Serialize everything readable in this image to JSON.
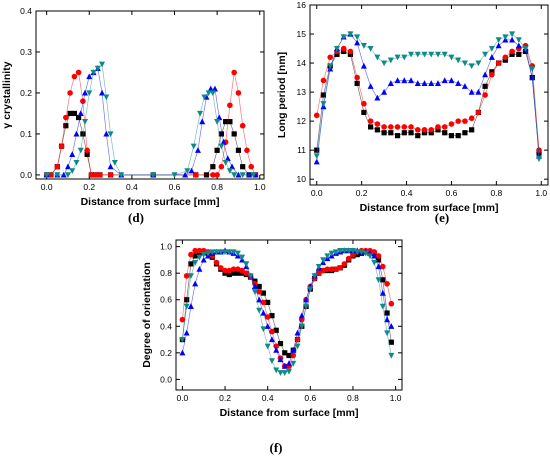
{
  "figure": {
    "captions": [
      "(d)",
      "(e)",
      "(f)"
    ]
  },
  "chart_data": [
    {
      "type": "scatter",
      "panel": "(d)",
      "xlabel": "Distance from surface [mm]",
      "ylabel": "γ crystallinity",
      "xlim": [
        -0.05,
        1.02
      ],
      "ylim": [
        -0.01,
        0.4
      ],
      "xticks": [
        "0.0",
        "0.2",
        "0.4",
        "0.6",
        "0.8",
        "1.0"
      ],
      "yticks": [
        "0.0",
        "0.1",
        "0.2",
        "0.3",
        "0.4"
      ],
      "grid": false,
      "legend": "none",
      "series": [
        {
          "color": "#000000",
          "marker": "square",
          "x": [
            0.0,
            0.02,
            0.05,
            0.07,
            0.09,
            0.11,
            0.13,
            0.15,
            0.17,
            0.19,
            0.21,
            0.23,
            0.25,
            0.3,
            0.5,
            0.7,
            0.75,
            0.78,
            0.8,
            0.82,
            0.84,
            0.86,
            0.88,
            0.9,
            0.92,
            0.95,
            0.98
          ],
          "y": [
            0.0,
            0.0,
            0.02,
            0.07,
            0.12,
            0.15,
            0.15,
            0.14,
            0.1,
            0.05,
            0.0,
            0.0,
            0.0,
            0.0,
            0.0,
            0.0,
            0.0,
            0.02,
            0.06,
            0.1,
            0.13,
            0.13,
            0.1,
            0.06,
            0.02,
            0.0,
            0.0
          ]
        },
        {
          "color": "#ff0000",
          "marker": "circle",
          "x": [
            0.0,
            0.02,
            0.05,
            0.07,
            0.09,
            0.11,
            0.13,
            0.15,
            0.17,
            0.19,
            0.21,
            0.23,
            0.25,
            0.3,
            0.5,
            0.7,
            0.78,
            0.8,
            0.82,
            0.84,
            0.86,
            0.88,
            0.9,
            0.92,
            0.94,
            0.96,
            0.98
          ],
          "y": [
            0.0,
            0.0,
            0.02,
            0.07,
            0.14,
            0.2,
            0.24,
            0.25,
            0.18,
            0.06,
            0.0,
            0.0,
            0.0,
            0.0,
            0.0,
            0.0,
            0.0,
            0.0,
            0.02,
            0.08,
            0.17,
            0.25,
            0.2,
            0.12,
            0.06,
            0.02,
            0.0
          ]
        },
        {
          "color": "#0000ff",
          "marker": "triangle-up",
          "x": [
            0.0,
            0.05,
            0.08,
            0.1,
            0.12,
            0.14,
            0.16,
            0.18,
            0.2,
            0.22,
            0.24,
            0.26,
            0.28,
            0.3,
            0.35,
            0.5,
            0.65,
            0.68,
            0.71,
            0.73,
            0.75,
            0.77,
            0.79,
            0.81,
            0.83,
            0.85,
            0.87,
            0.9,
            0.95,
            0.98
          ],
          "y": [
            0.0,
            0.0,
            0.0,
            0.02,
            0.05,
            0.1,
            0.15,
            0.2,
            0.24,
            0.25,
            0.26,
            0.2,
            0.1,
            0.02,
            0.0,
            0.0,
            0.0,
            0.01,
            0.06,
            0.13,
            0.19,
            0.21,
            0.21,
            0.14,
            0.08,
            0.04,
            0.02,
            0.0,
            0.0,
            0.0
          ]
        },
        {
          "color": "#0f8a86",
          "marker": "triangle-down",
          "x": [
            0.0,
            0.05,
            0.1,
            0.12,
            0.14,
            0.16,
            0.18,
            0.2,
            0.22,
            0.24,
            0.26,
            0.28,
            0.3,
            0.32,
            0.35,
            0.5,
            0.6,
            0.66,
            0.69,
            0.72,
            0.74,
            0.76,
            0.78,
            0.8,
            0.82,
            0.84,
            0.86,
            0.88,
            0.92,
            0.97
          ],
          "y": [
            0.0,
            0.0,
            0.0,
            0.01,
            0.03,
            0.06,
            0.13,
            0.2,
            0.25,
            0.26,
            0.27,
            0.19,
            0.1,
            0.03,
            0.0,
            0.0,
            0.0,
            0.01,
            0.07,
            0.15,
            0.19,
            0.2,
            0.2,
            0.13,
            0.07,
            0.03,
            0.01,
            0.0,
            0.0,
            0.0
          ]
        }
      ]
    },
    {
      "type": "scatter",
      "panel": "(e)",
      "xlabel": "Distance from surface [mm]",
      "ylabel": "Long period [nm]",
      "xlim": [
        -0.03,
        1.03
      ],
      "ylim": [
        9.8,
        16
      ],
      "xticks": [
        "0.0",
        "0.2",
        "0.4",
        "0.6",
        "0.8",
        "1.0"
      ],
      "yticks": [
        "10",
        "11",
        "12",
        "13",
        "14",
        "15",
        "16"
      ],
      "grid": false,
      "legend": "none",
      "series": [
        {
          "color": "#000000",
          "marker": "square",
          "x": [
            0.0,
            0.03,
            0.06,
            0.09,
            0.12,
            0.15,
            0.18,
            0.21,
            0.24,
            0.27,
            0.3,
            0.33,
            0.36,
            0.39,
            0.42,
            0.45,
            0.48,
            0.51,
            0.54,
            0.57,
            0.6,
            0.63,
            0.66,
            0.69,
            0.72,
            0.75,
            0.78,
            0.81,
            0.84,
            0.87,
            0.9,
            0.93,
            0.96,
            0.99
          ],
          "y": [
            11.0,
            12.9,
            13.9,
            14.3,
            14.4,
            14.3,
            13.3,
            12.3,
            11.8,
            11.7,
            11.6,
            11.6,
            11.5,
            11.6,
            11.6,
            11.5,
            11.6,
            11.6,
            11.7,
            11.6,
            11.5,
            11.5,
            11.6,
            11.7,
            12.3,
            13.2,
            13.7,
            14.0,
            14.1,
            14.3,
            14.3,
            14.4,
            13.5,
            10.9
          ]
        },
        {
          "color": "#ff0000",
          "marker": "circle",
          "x": [
            0.0,
            0.03,
            0.06,
            0.09,
            0.12,
            0.15,
            0.18,
            0.21,
            0.24,
            0.27,
            0.3,
            0.33,
            0.36,
            0.39,
            0.42,
            0.45,
            0.48,
            0.51,
            0.54,
            0.57,
            0.6,
            0.63,
            0.66,
            0.69,
            0.72,
            0.75,
            0.78,
            0.81,
            0.84,
            0.87,
            0.9,
            0.93,
            0.96,
            0.99
          ],
          "y": [
            12.2,
            13.4,
            14.2,
            14.4,
            14.5,
            14.4,
            13.5,
            12.6,
            12.0,
            11.9,
            11.8,
            11.8,
            11.8,
            11.8,
            11.8,
            11.7,
            11.7,
            11.7,
            11.8,
            11.8,
            11.9,
            12.0,
            12.0,
            12.1,
            12.3,
            12.9,
            13.6,
            14.0,
            14.2,
            14.4,
            14.5,
            14.6,
            13.9,
            11.0
          ]
        },
        {
          "color": "#0000ff",
          "marker": "triangle-up",
          "x": [
            0.0,
            0.03,
            0.06,
            0.09,
            0.12,
            0.15,
            0.18,
            0.21,
            0.24,
            0.27,
            0.3,
            0.33,
            0.36,
            0.39,
            0.42,
            0.45,
            0.48,
            0.51,
            0.54,
            0.57,
            0.6,
            0.63,
            0.66,
            0.69,
            0.72,
            0.75,
            0.78,
            0.81,
            0.84,
            0.87,
            0.9,
            0.93,
            0.96,
            0.99
          ],
          "y": [
            10.6,
            12.5,
            13.8,
            14.5,
            14.9,
            15.0,
            14.7,
            13.9,
            13.2,
            12.8,
            13.0,
            13.3,
            13.4,
            13.4,
            13.4,
            13.3,
            13.3,
            13.3,
            13.3,
            13.4,
            13.4,
            13.3,
            13.2,
            13.0,
            13.0,
            13.6,
            14.2,
            14.6,
            14.8,
            14.8,
            14.6,
            14.5,
            13.5,
            10.8
          ]
        },
        {
          "color": "#0f8a86",
          "marker": "triangle-down",
          "x": [
            0.0,
            0.03,
            0.06,
            0.09,
            0.12,
            0.15,
            0.18,
            0.21,
            0.24,
            0.27,
            0.3,
            0.33,
            0.36,
            0.39,
            0.42,
            0.45,
            0.48,
            0.51,
            0.54,
            0.57,
            0.6,
            0.63,
            0.66,
            0.69,
            0.72,
            0.75,
            0.78,
            0.81,
            0.84,
            0.87,
            0.9,
            0.93,
            0.96,
            0.99
          ],
          "y": [
            10.8,
            12.6,
            13.9,
            14.5,
            14.9,
            15.0,
            14.9,
            14.6,
            14.5,
            14.2,
            14.0,
            14.1,
            14.2,
            14.2,
            14.3,
            14.3,
            14.3,
            14.3,
            14.3,
            14.3,
            14.2,
            14.1,
            14.0,
            13.9,
            14.0,
            14.3,
            14.5,
            14.8,
            14.9,
            15.0,
            14.8,
            14.5,
            13.8,
            10.7
          ]
        }
      ]
    },
    {
      "type": "scatter",
      "panel": "(f)",
      "xlabel": "Distance from surface [mm]",
      "ylabel": "Degree of orientation",
      "xlim": [
        -0.03,
        1.03
      ],
      "ylim": [
        -0.08,
        1.05
      ],
      "xticks": [
        "0.0",
        "0.2",
        "0.4",
        "0.6",
        "0.8",
        "1.0"
      ],
      "yticks": [
        "0.0",
        "0.2",
        "0.4",
        "0.6",
        "0.8",
        "1.0"
      ],
      "grid": false,
      "legend": "none",
      "series": [
        {
          "color": "#000000",
          "marker": "square",
          "x": [
            0.0,
            0.02,
            0.04,
            0.06,
            0.08,
            0.1,
            0.12,
            0.14,
            0.16,
            0.18,
            0.2,
            0.22,
            0.24,
            0.26,
            0.28,
            0.3,
            0.32,
            0.34,
            0.36,
            0.38,
            0.4,
            0.42,
            0.44,
            0.46,
            0.48,
            0.5,
            0.52,
            0.54,
            0.56,
            0.58,
            0.6,
            0.62,
            0.64,
            0.66,
            0.68,
            0.7,
            0.72,
            0.74,
            0.76,
            0.78,
            0.8,
            0.82,
            0.84,
            0.86,
            0.88,
            0.9,
            0.92,
            0.94,
            0.96,
            0.98
          ],
          "y": [
            0.3,
            0.6,
            0.87,
            0.93,
            0.95,
            0.96,
            0.95,
            0.92,
            0.87,
            0.83,
            0.8,
            0.79,
            0.8,
            0.8,
            0.8,
            0.79,
            0.77,
            0.74,
            0.7,
            0.65,
            0.58,
            0.48,
            0.37,
            0.27,
            0.2,
            0.18,
            0.22,
            0.3,
            0.4,
            0.55,
            0.68,
            0.76,
            0.8,
            0.82,
            0.82,
            0.82,
            0.83,
            0.84,
            0.86,
            0.9,
            0.93,
            0.94,
            0.95,
            0.96,
            0.96,
            0.95,
            0.9,
            0.75,
            0.5,
            0.28
          ]
        },
        {
          "color": "#ff0000",
          "marker": "circle",
          "x": [
            0.0,
            0.02,
            0.04,
            0.06,
            0.08,
            0.1,
            0.12,
            0.14,
            0.16,
            0.18,
            0.2,
            0.22,
            0.24,
            0.26,
            0.28,
            0.3,
            0.32,
            0.34,
            0.36,
            0.38,
            0.4,
            0.42,
            0.44,
            0.46,
            0.48,
            0.5,
            0.52,
            0.54,
            0.56,
            0.58,
            0.6,
            0.62,
            0.64,
            0.66,
            0.68,
            0.7,
            0.72,
            0.74,
            0.76,
            0.78,
            0.8,
            0.82,
            0.84,
            0.86,
            0.88,
            0.9,
            0.92,
            0.94,
            0.96,
            0.98
          ],
          "y": [
            0.45,
            0.78,
            0.94,
            0.97,
            0.97,
            0.97,
            0.96,
            0.93,
            0.88,
            0.84,
            0.82,
            0.82,
            0.83,
            0.83,
            0.82,
            0.8,
            0.77,
            0.72,
            0.66,
            0.58,
            0.47,
            0.36,
            0.25,
            0.16,
            0.1,
            0.1,
            0.18,
            0.3,
            0.45,
            0.6,
            0.7,
            0.76,
            0.8,
            0.82,
            0.83,
            0.83,
            0.83,
            0.84,
            0.87,
            0.91,
            0.94,
            0.96,
            0.97,
            0.97,
            0.97,
            0.96,
            0.93,
            0.85,
            0.72,
            0.57
          ]
        },
        {
          "color": "#0000ff",
          "marker": "triangle-up",
          "x": [
            0.0,
            0.02,
            0.04,
            0.06,
            0.08,
            0.1,
            0.12,
            0.14,
            0.16,
            0.18,
            0.2,
            0.22,
            0.24,
            0.26,
            0.28,
            0.3,
            0.32,
            0.34,
            0.36,
            0.38,
            0.4,
            0.42,
            0.44,
            0.46,
            0.48,
            0.5,
            0.52,
            0.54,
            0.56,
            0.58,
            0.6,
            0.62,
            0.64,
            0.66,
            0.68,
            0.7,
            0.72,
            0.74,
            0.76,
            0.78,
            0.8,
            0.82,
            0.84,
            0.86,
            0.88,
            0.9,
            0.92,
            0.94,
            0.96,
            0.98
          ],
          "y": [
            0.2,
            0.35,
            0.55,
            0.72,
            0.83,
            0.9,
            0.93,
            0.95,
            0.96,
            0.96,
            0.97,
            0.96,
            0.95,
            0.93,
            0.9,
            0.85,
            0.78,
            0.7,
            0.6,
            0.5,
            0.4,
            0.3,
            0.22,
            0.15,
            0.1,
            0.12,
            0.22,
            0.35,
            0.48,
            0.6,
            0.7,
            0.78,
            0.84,
            0.88,
            0.91,
            0.93,
            0.95,
            0.96,
            0.97,
            0.97,
            0.97,
            0.97,
            0.96,
            0.96,
            0.95,
            0.93,
            0.85,
            0.65,
            0.45,
            0.4
          ]
        },
        {
          "color": "#0f8a86",
          "marker": "triangle-down",
          "x": [
            0.0,
            0.02,
            0.04,
            0.06,
            0.08,
            0.1,
            0.12,
            0.14,
            0.16,
            0.18,
            0.2,
            0.22,
            0.24,
            0.26,
            0.28,
            0.3,
            0.32,
            0.34,
            0.36,
            0.38,
            0.4,
            0.42,
            0.44,
            0.46,
            0.48,
            0.5,
            0.52,
            0.54,
            0.56,
            0.58,
            0.6,
            0.62,
            0.64,
            0.66,
            0.68,
            0.7,
            0.72,
            0.74,
            0.76,
            0.78,
            0.8,
            0.82,
            0.84,
            0.86,
            0.88,
            0.9,
            0.92,
            0.94,
            0.96,
            0.98
          ],
          "y": [
            0.3,
            0.55,
            0.78,
            0.88,
            0.92,
            0.94,
            0.95,
            0.96,
            0.96,
            0.96,
            0.96,
            0.96,
            0.96,
            0.95,
            0.92,
            0.87,
            0.78,
            0.66,
            0.52,
            0.38,
            0.25,
            0.14,
            0.07,
            0.05,
            0.05,
            0.06,
            0.12,
            0.25,
            0.4,
            0.55,
            0.68,
            0.78,
            0.85,
            0.9,
            0.93,
            0.95,
            0.96,
            0.97,
            0.97,
            0.97,
            0.97,
            0.96,
            0.96,
            0.95,
            0.93,
            0.88,
            0.75,
            0.55,
            0.35,
            0.18
          ]
        }
      ]
    }
  ]
}
